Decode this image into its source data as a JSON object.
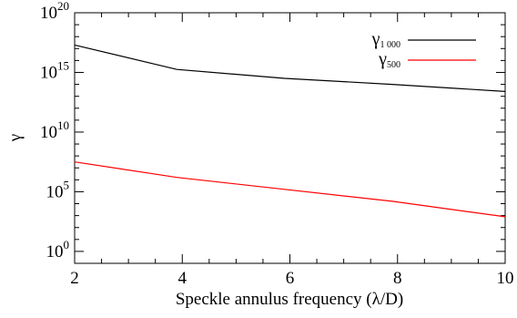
{
  "chart_data": {
    "type": "line",
    "xlabel": "Speckle annulus frequency (λ/D)",
    "ylabel": "γ",
    "xlim": [
      2,
      10
    ],
    "ylim_log10": [
      -1,
      20
    ],
    "y_scale": "log",
    "x_ticks": [
      {
        "value": 2,
        "label": "2"
      },
      {
        "value": 4,
        "label": "4"
      },
      {
        "value": 6,
        "label": "6"
      },
      {
        "value": 8,
        "label": "8"
      },
      {
        "value": 10,
        "label": "10"
      }
    ],
    "y_ticks": [
      {
        "exp": 0,
        "base": "10",
        "sup": "0"
      },
      {
        "exp": 5,
        "base": "10",
        "sup": "5"
      },
      {
        "exp": 10,
        "base": "10",
        "sup": "10"
      },
      {
        "exp": 15,
        "base": "10",
        "sup": "15"
      },
      {
        "exp": 20,
        "base": "10",
        "sup": "20"
      }
    ],
    "legend_placement": "top-right",
    "grid": false,
    "series": [
      {
        "name": "γ1 000",
        "legend_main": "γ",
        "legend_sub": "1 000",
        "color": "#000000",
        "x": [
          2,
          3.9,
          5.9,
          7.9,
          10
        ],
        "log10_y": [
          17.3,
          15.25,
          14.5,
          14.0,
          13.4
        ]
      },
      {
        "name": "γ500",
        "legend_main": "γ",
        "legend_sub": "500",
        "color": "#ff0000",
        "x": [
          2,
          3.9,
          5.9,
          7.9,
          10
        ],
        "log10_y": [
          7.5,
          6.2,
          5.2,
          4.2,
          2.9
        ]
      }
    ]
  }
}
